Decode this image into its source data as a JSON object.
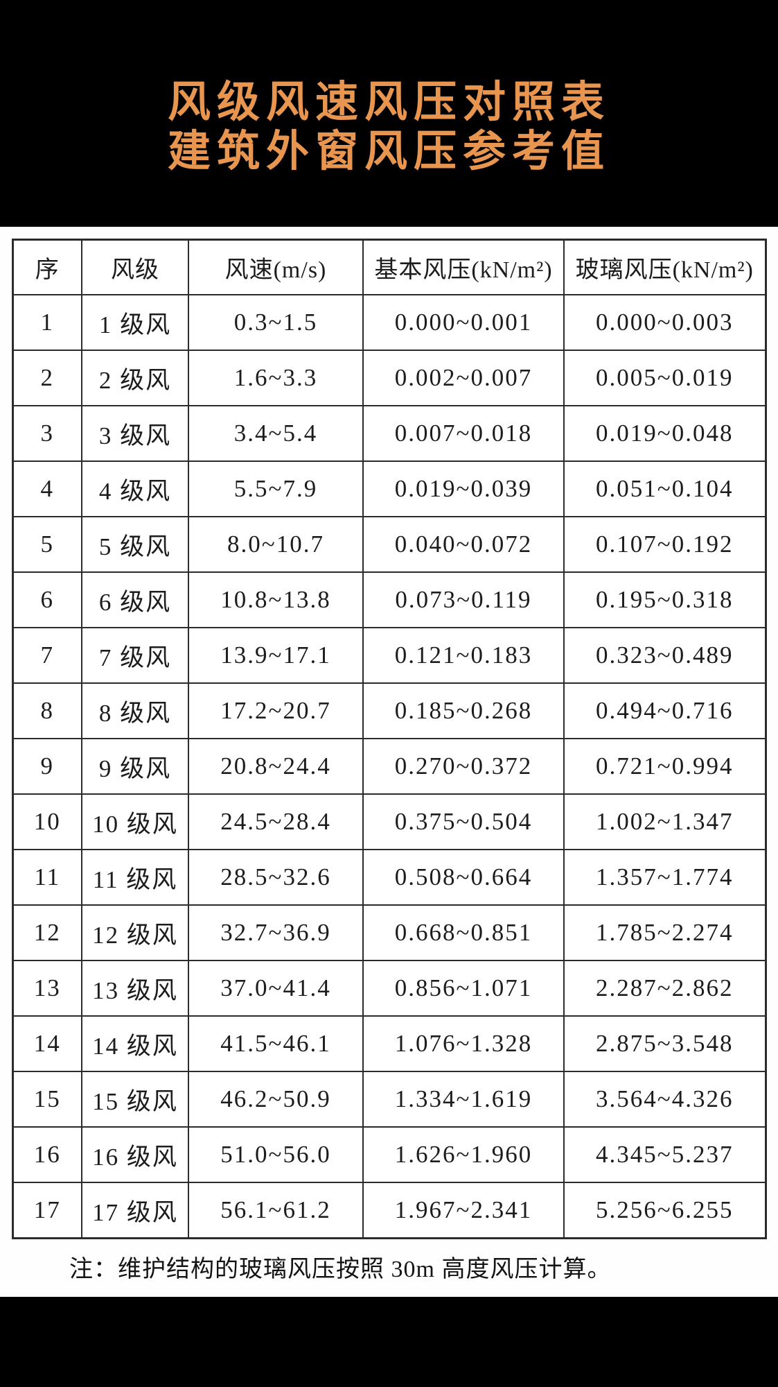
{
  "page": {
    "background_color": "#000000",
    "content_background_color": "#FEFEFE",
    "title_color": "#E8954F",
    "text_color": "#1C1C1C"
  },
  "title": {
    "line1": "风级风速风压对照表",
    "line2": "建筑外窗风压参考值"
  },
  "table": {
    "headers": [
      "序",
      "风级",
      "风速(m/s)",
      "基本风压(kN/m²)",
      "玻璃风压(kN/m²)"
    ],
    "rows": [
      {
        "no": "1",
        "level": "1 级风",
        "speed": "0.3~1.5",
        "basic_pressure": "0.000~0.001",
        "glass_pressure": "0.000~0.003"
      },
      {
        "no": "2",
        "level": "2 级风",
        "speed": "1.6~3.3",
        "basic_pressure": "0.002~0.007",
        "glass_pressure": "0.005~0.019"
      },
      {
        "no": "3",
        "level": "3 级风",
        "speed": "3.4~5.4",
        "basic_pressure": "0.007~0.018",
        "glass_pressure": "0.019~0.048"
      },
      {
        "no": "4",
        "level": "4 级风",
        "speed": "5.5~7.9",
        "basic_pressure": "0.019~0.039",
        "glass_pressure": "0.051~0.104"
      },
      {
        "no": "5",
        "level": "5 级风",
        "speed": "8.0~10.7",
        "basic_pressure": "0.040~0.072",
        "glass_pressure": "0.107~0.192"
      },
      {
        "no": "6",
        "level": "6 级风",
        "speed": "10.8~13.8",
        "basic_pressure": "0.073~0.119",
        "glass_pressure": "0.195~0.318"
      },
      {
        "no": "7",
        "level": "7 级风",
        "speed": "13.9~17.1",
        "basic_pressure": "0.121~0.183",
        "glass_pressure": "0.323~0.489"
      },
      {
        "no": "8",
        "level": "8 级风",
        "speed": "17.2~20.7",
        "basic_pressure": "0.185~0.268",
        "glass_pressure": "0.494~0.716"
      },
      {
        "no": "9",
        "level": "9 级风",
        "speed": "20.8~24.4",
        "basic_pressure": "0.270~0.372",
        "glass_pressure": "0.721~0.994"
      },
      {
        "no": "10",
        "level": "10 级风",
        "speed": "24.5~28.4",
        "basic_pressure": "0.375~0.504",
        "glass_pressure": "1.002~1.347"
      },
      {
        "no": "11",
        "level": "11 级风",
        "speed": "28.5~32.6",
        "basic_pressure": "0.508~0.664",
        "glass_pressure": "1.357~1.774"
      },
      {
        "no": "12",
        "level": "12 级风",
        "speed": "32.7~36.9",
        "basic_pressure": "0.668~0.851",
        "glass_pressure": "1.785~2.274"
      },
      {
        "no": "13",
        "level": "13 级风",
        "speed": "37.0~41.4",
        "basic_pressure": "0.856~1.071",
        "glass_pressure": "2.287~2.862"
      },
      {
        "no": "14",
        "level": "14 级风",
        "speed": "41.5~46.1",
        "basic_pressure": "1.076~1.328",
        "glass_pressure": "2.875~3.548"
      },
      {
        "no": "15",
        "level": "15 级风",
        "speed": "46.2~50.9",
        "basic_pressure": "1.334~1.619",
        "glass_pressure": "3.564~4.326"
      },
      {
        "no": "16",
        "level": "16 级风",
        "speed": "51.0~56.0",
        "basic_pressure": "1.626~1.960",
        "glass_pressure": "4.345~5.237"
      },
      {
        "no": "17",
        "level": "17 级风",
        "speed": "56.1~61.2",
        "basic_pressure": "1.967~2.341",
        "glass_pressure": "5.256~6.255"
      }
    ]
  },
  "note": "注：维护结构的玻璃风压按照 30m 高度风压计算。"
}
